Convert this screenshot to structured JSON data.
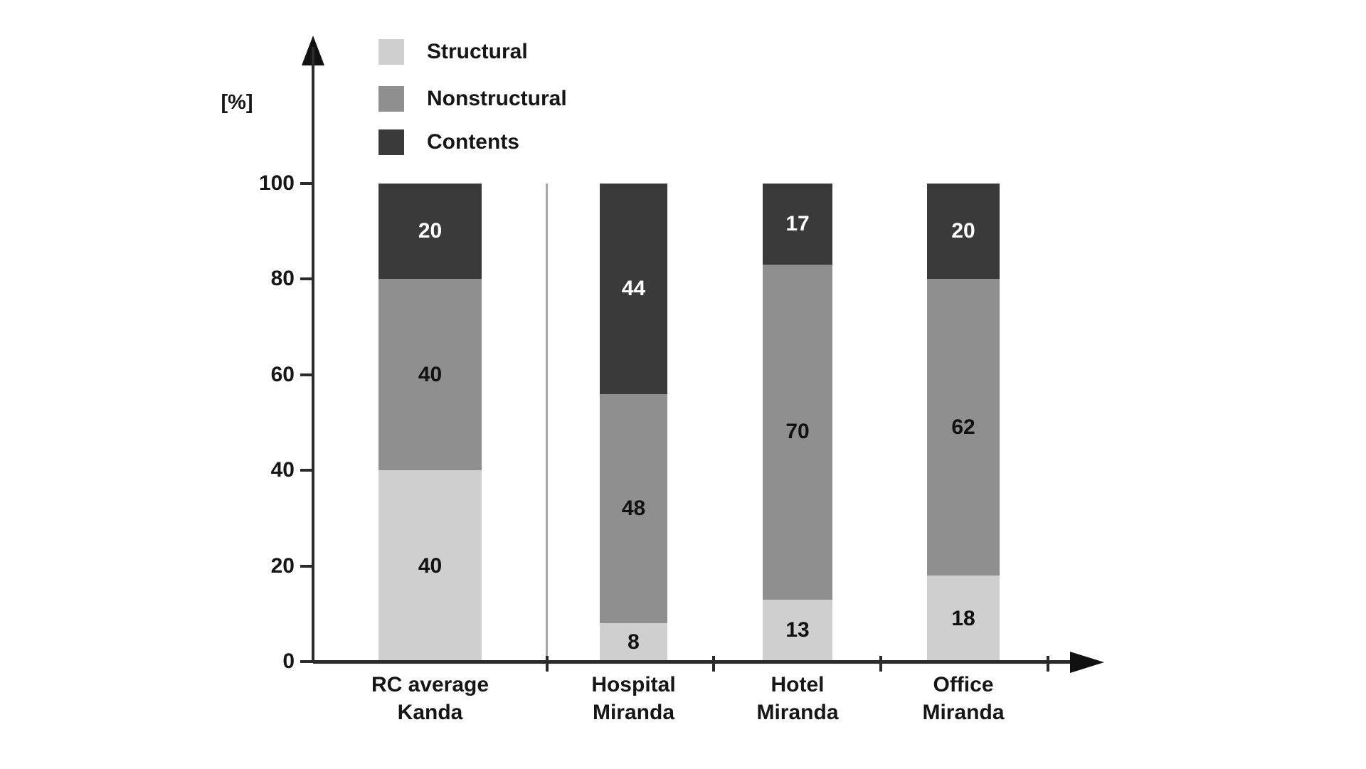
{
  "chart_data": {
    "type": "bar",
    "stacked": true,
    "title": "",
    "unit_label": "[%]",
    "xlabel": "",
    "ylabel": "[%]",
    "ylim": [
      0,
      100
    ],
    "yticks": [
      0,
      20,
      40,
      60,
      80,
      100
    ],
    "grid": false,
    "legend_position": "top-left-inside",
    "categories": [
      {
        "line1": "RC average",
        "line2": "Kanda"
      },
      {
        "line1": "Hospital",
        "line2": "Miranda"
      },
      {
        "line1": "Hotel",
        "line2": "Miranda"
      },
      {
        "line1": "Office",
        "line2": "Miranda"
      }
    ],
    "series": [
      {
        "name": "Structural",
        "color": "#cfcfcf",
        "label_color": "#111111",
        "values": [
          40,
          8,
          13,
          18
        ]
      },
      {
        "name": "Nonstructural",
        "color": "#8f8f8f",
        "label_color": "#111111",
        "values": [
          40,
          48,
          70,
          62
        ]
      },
      {
        "name": "Contents",
        "color": "#3a3a3a",
        "label_color": "#ffffff",
        "values": [
          20,
          44,
          17,
          20
        ]
      }
    ]
  },
  "colors": {
    "background": "#ffffff",
    "axis": "#2b2b2b",
    "divider": "#a8a8a8",
    "text": "#161616"
  }
}
